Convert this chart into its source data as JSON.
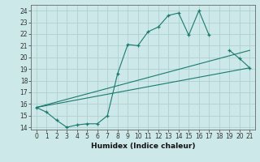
{
  "xlabel": "Humidex (Indice chaleur)",
  "background_color": "#cce8e8",
  "grid_color": "#b0d0d0",
  "line_color": "#1a7a6e",
  "x_values": [
    0,
    1,
    2,
    3,
    4,
    5,
    6,
    7,
    8,
    9,
    10,
    11,
    12,
    13,
    14,
    15,
    16,
    17,
    18,
    19,
    20,
    21
  ],
  "line1": [
    15.7,
    15.3,
    14.6,
    14.0,
    14.2,
    14.3,
    14.3,
    15.0,
    18.6,
    21.1,
    21.0,
    22.2,
    22.6,
    23.6,
    23.8,
    21.9,
    24.0,
    21.9,
    null,
    20.6,
    19.9,
    19.1
  ],
  "line2_x": [
    0,
    21
  ],
  "line2_y": [
    15.7,
    20.6
  ],
  "line3_x": [
    0,
    21
  ],
  "line3_y": [
    15.7,
    19.1
  ],
  "ylim": [
    13.8,
    24.5
  ],
  "xlim": [
    -0.5,
    21.5
  ],
  "yticks": [
    14,
    15,
    16,
    17,
    18,
    19,
    20,
    21,
    22,
    23,
    24
  ],
  "xticks": [
    0,
    1,
    2,
    3,
    4,
    5,
    6,
    7,
    8,
    9,
    10,
    11,
    12,
    13,
    14,
    15,
    16,
    17,
    18,
    19,
    20,
    21
  ]
}
